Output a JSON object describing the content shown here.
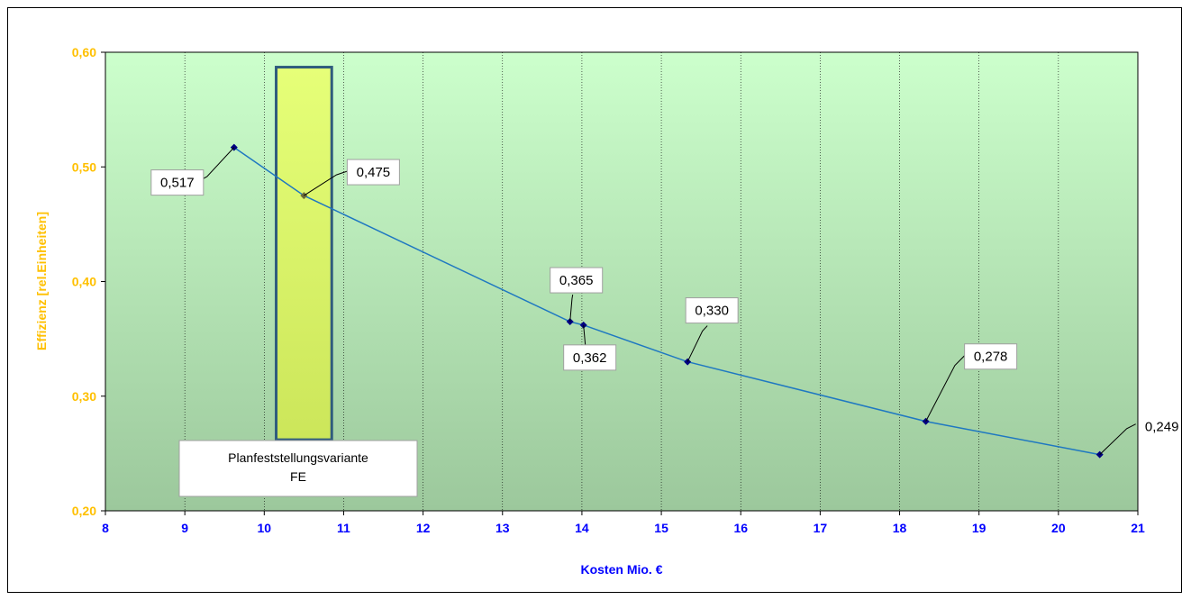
{
  "chart_data": {
    "type": "line",
    "title": "",
    "xlabel": "Kosten Mio. €",
    "ylabel": "Effizienz [rel.Einheiten]",
    "xlim": [
      8,
      21
    ],
    "ylim": [
      0.2,
      0.6
    ],
    "x_ticks": [
      "8",
      "9",
      "10",
      "11",
      "12",
      "13",
      "14",
      "15",
      "16",
      "17",
      "18",
      "19",
      "20",
      "21"
    ],
    "y_ticks": [
      "0,20",
      "0,30",
      "0,40",
      "0,50",
      "0,60"
    ],
    "grid": "vertical dotted",
    "series": [
      {
        "x": [
          9.62,
          10.5,
          13.85,
          14.02,
          15.33,
          18.33,
          20.52
        ],
        "y": [
          0.517,
          0.475,
          0.365,
          0.362,
          0.33,
          0.278,
          0.249
        ],
        "labels": [
          "0,517",
          "0,475",
          "0,365",
          "0,362",
          "0,330",
          "0,278",
          "0,249"
        ]
      }
    ],
    "highlight": {
      "x_range": [
        10.15,
        10.85
      ],
      "y_range": [
        0.262,
        0.587
      ],
      "note_lines": [
        "Planfeststellungsvariante",
        "FE"
      ]
    },
    "colors": {
      "line": "#1F78C1",
      "marker": "#000080",
      "highlight_marker": "#6B6B3A",
      "x_tick_text": "#0000FF",
      "y_tick_text": "#FFC000",
      "xlabel_text": "#0000FF",
      "ylabel_text": "#FFC000",
      "plot_top": "#CCFFCC",
      "plot_bottom": "#9CC89C",
      "highlight_fill_top": "#E6FF78",
      "highlight_fill_bottom": "#CCE65A",
      "highlight_border": "#2F5C7D"
    }
  }
}
